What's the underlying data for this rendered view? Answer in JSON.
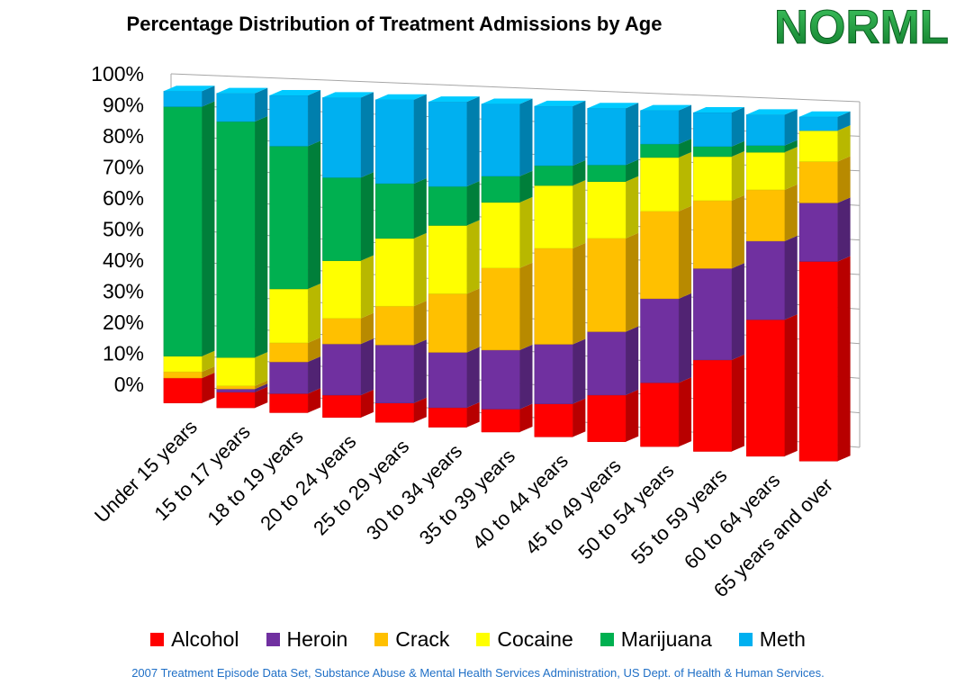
{
  "title": "Percentage Distribution of Treatment Admissions by Age",
  "logo": {
    "text": "NORML",
    "color": "#1a9a3a"
  },
  "source": "2007 Treatment Episode Data Set, Substance Abuse & Mental Health Services Administration, US Dept. of Health & Human Services.",
  "chart_data": {
    "type": "bar",
    "stacked": true,
    "three_d": true,
    "percent_stacked": true,
    "categories": [
      "Under 15 years",
      "15 to 17 years",
      "18 to 19 years",
      "20 to 24 years",
      "25 to 29 years",
      "30 to 34 years",
      "35 to 39 years",
      "40 to 44 years",
      "45 to 49 years",
      "50 to 54 years",
      "55 to 59 years",
      "60 to 64 years",
      "65 years and over"
    ],
    "series": [
      {
        "name": "Alcohol",
        "color": "#ff0000",
        "values": [
          8,
          5,
          6,
          7,
          6,
          6,
          7,
          10,
          14,
          19,
          27,
          40,
          58
        ]
      },
      {
        "name": "Heroin",
        "color": "#7030a0",
        "values": [
          0,
          1,
          10,
          16,
          18,
          17,
          18,
          18,
          19,
          25,
          27,
          23,
          17
        ]
      },
      {
        "name": "Crack",
        "color": "#ffc000",
        "values": [
          2,
          1,
          6,
          8,
          12,
          18,
          25,
          29,
          28,
          26,
          20,
          15,
          12
        ]
      },
      {
        "name": "Cocaine",
        "color": "#ffff00",
        "values": [
          5,
          9,
          17,
          18,
          21,
          21,
          20,
          19,
          17,
          16,
          13,
          11,
          9
        ]
      },
      {
        "name": "Marijuana",
        "color": "#00b050",
        "values": [
          80,
          75,
          45,
          26,
          17,
          12,
          8,
          6,
          5,
          4,
          3,
          2,
          0
        ]
      },
      {
        "name": "Meth",
        "color": "#00b0f0",
        "values": [
          5,
          9,
          16,
          25,
          26,
          26,
          22,
          18,
          17,
          10,
          10,
          9,
          4
        ]
      }
    ],
    "yticks": [
      "0%",
      "10%",
      "20%",
      "30%",
      "40%",
      "50%",
      "60%",
      "70%",
      "80%",
      "90%",
      "100%"
    ],
    "ylim": [
      0,
      100
    ],
    "xlabel": "",
    "ylabel": "",
    "grid": true,
    "legend_position": "bottom"
  }
}
